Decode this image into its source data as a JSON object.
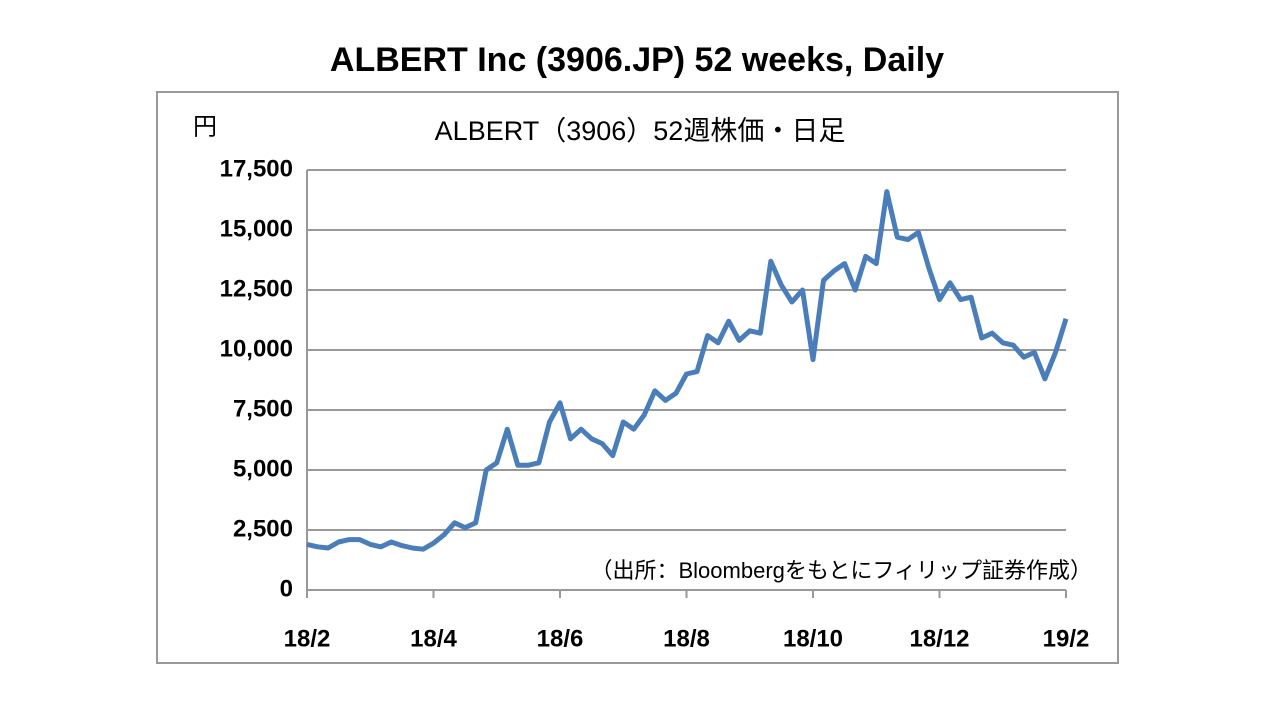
{
  "chart_data": {
    "type": "line",
    "title": "ALBERT Inc (3906.JP) 52 weeks, Daily",
    "subtitle": "ALBERT（3906）52週株価・日足",
    "y_label": "円",
    "annotation": "（出所：Bloombergをもとにフィリップ証券作成）",
    "categories": [
      "18/2",
      null,
      null,
      null,
      null,
      null,
      null,
      null,
      null,
      null,
      null,
      null,
      "18/4",
      null,
      null,
      null,
      null,
      null,
      null,
      null,
      null,
      null,
      null,
      null,
      "18/6",
      null,
      null,
      null,
      null,
      null,
      null,
      null,
      null,
      null,
      null,
      null,
      "18/8",
      null,
      null,
      null,
      null,
      null,
      null,
      null,
      null,
      null,
      null,
      null,
      "18/10",
      null,
      null,
      null,
      null,
      null,
      null,
      null,
      null,
      null,
      null,
      null,
      "18/12",
      null,
      null,
      null,
      null,
      null,
      null,
      null,
      null,
      null,
      null,
      null,
      "19/2"
    ],
    "series": [
      {
        "name": "ALBERT",
        "color": "#4a7ebb",
        "values": [
          1900,
          1800,
          1750,
          2000,
          2100,
          2100,
          1900,
          1800,
          2000,
          1850,
          1750,
          1700,
          1950,
          2300,
          2800,
          2600,
          2800,
          5000,
          5300,
          6700,
          5200,
          5200,
          5300,
          7000,
          7800,
          6300,
          6700,
          6300,
          6100,
          5600,
          7000,
          6700,
          7300,
          8300,
          7900,
          8200,
          9000,
          9100,
          10600,
          10300,
          11200,
          10400,
          10800,
          10700,
          13700,
          12700,
          12000,
          12500,
          9600,
          12900,
          13300,
          13600,
          12500,
          13900,
          13600,
          16600,
          14700,
          14600,
          14900,
          13400,
          12100,
          12800,
          12100,
          12200,
          10500,
          10700,
          10300,
          10200,
          9700,
          9900,
          8800,
          9900,
          11300
        ]
      }
    ],
    "ylim": [
      0,
      17500
    ],
    "yticks": [
      0,
      {
        "value": 2500,
        "label": "2,500"
      },
      {
        "value": 5000,
        "label": "5,000"
      },
      {
        "value": 7500,
        "label": "7,500"
      },
      {
        "value": 10000,
        "label": "10,000"
      },
      {
        "value": 12500,
        "label": "12,500"
      },
      {
        "value": 15000,
        "label": "15,000"
      },
      {
        "value": 17500,
        "label": "17,500"
      }
    ],
    "grid": true
  }
}
